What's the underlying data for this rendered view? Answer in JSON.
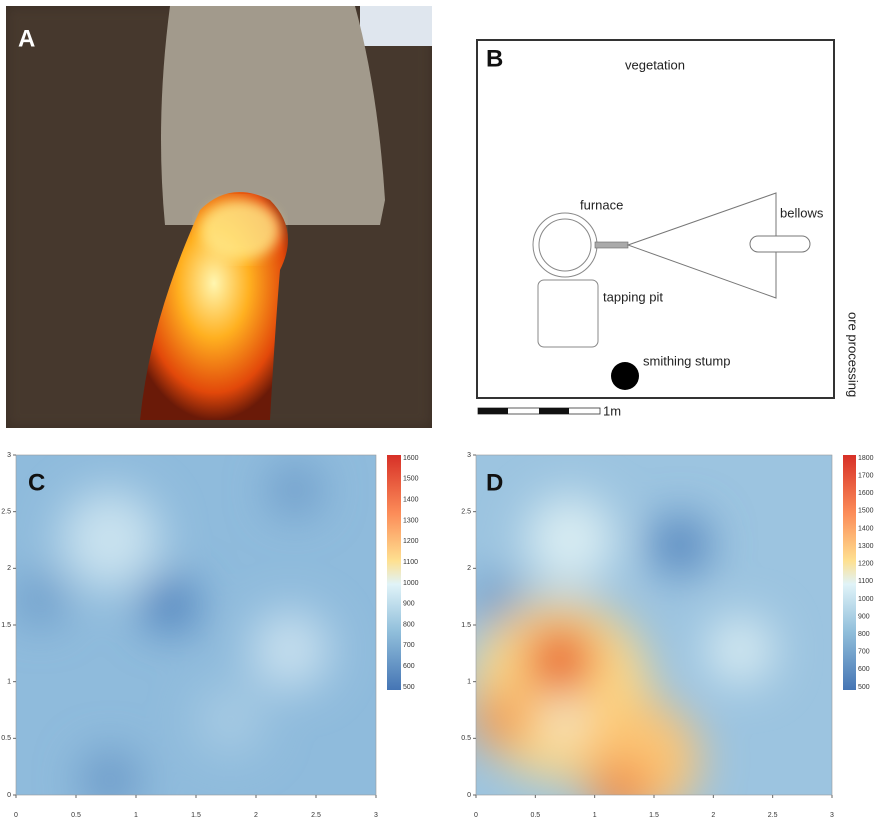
{
  "panel_a": {
    "label": "A"
  },
  "panel_b": {
    "label": "B",
    "top": "vegetation",
    "furnace": "furnace",
    "bellows": "bellows",
    "tapping_pit": "tapping pit",
    "smithing_stump": "smithing stump",
    "side": "ore processing",
    "scale": "1m"
  },
  "panel_c": {
    "label": "C",
    "xticks": [
      0,
      0.5,
      1,
      1.5,
      2,
      2.5,
      3
    ],
    "yticks": [
      0,
      0.5,
      1,
      1.5,
      2,
      2.5,
      3
    ],
    "colorbar": [
      1600,
      1500,
      1400,
      1300,
      1200,
      1100,
      1000,
      900,
      800,
      700,
      600,
      500
    ]
  },
  "panel_d": {
    "label": "D",
    "xticks": [
      0,
      0.5,
      1,
      1.5,
      2,
      2.5,
      3
    ],
    "yticks": [
      0,
      0.5,
      1,
      1.5,
      2,
      2.5,
      3
    ],
    "colorbar": [
      1800,
      1700,
      1600,
      1500,
      1400,
      1300,
      1200,
      1100,
      1000,
      900,
      800,
      700,
      600,
      500
    ]
  }
}
